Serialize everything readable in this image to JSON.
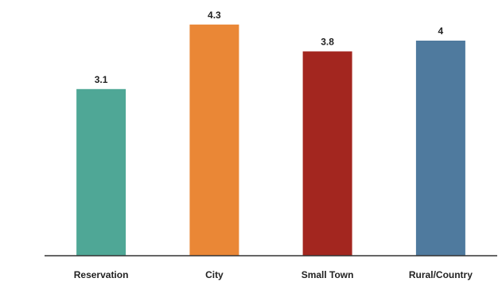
{
  "chart_data": {
    "type": "bar",
    "categories": [
      "Reservation",
      "City",
      "Small Town",
      "Rural/Country"
    ],
    "values": [
      3.1,
      4.3,
      3.8,
      4
    ],
    "value_labels": [
      "3.1",
      "4.3",
      "3.8",
      "4"
    ],
    "colors": [
      "#4fa796",
      "#ea8736",
      "#a3261f",
      "#4f7a9e"
    ],
    "title": "",
    "xlabel": "",
    "ylabel": "",
    "ylim": [
      0,
      4.5
    ],
    "grid": false,
    "legend": "none"
  }
}
